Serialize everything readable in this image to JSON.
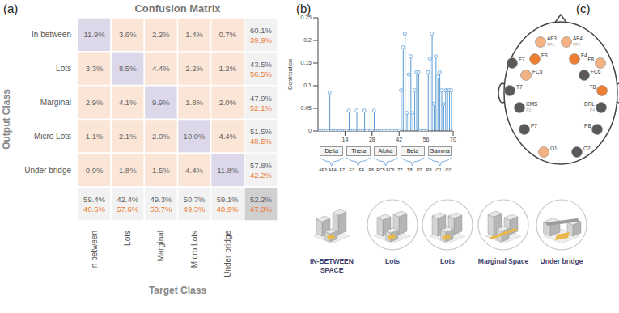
{
  "panel_labels": [
    "(a)",
    "(b)",
    "(c)"
  ],
  "chart_data": [
    {
      "type": "heatmap",
      "title": "Confusion Matrix",
      "x_label": "Target Class",
      "y_label": "Output Class",
      "categories": [
        "In between",
        "Lots",
        "Marginal",
        "Micro Lots",
        "Under bridge"
      ],
      "cells": [
        [
          11.9,
          3.6,
          2.2,
          1.4,
          0.7
        ],
        [
          3.3,
          8.5,
          4.4,
          2.2,
          1.2
        ],
        [
          2.9,
          4.1,
          9.9,
          1.8,
          2.0
        ],
        [
          1.1,
          2.1,
          2.0,
          10.0,
          4.4
        ],
        [
          0.9,
          1.8,
          1.5,
          4.4,
          11.8
        ]
      ],
      "cell_labels": [
        [
          "11.9%",
          "3.6%",
          "2.2%",
          "1.4%",
          "0.7%"
        ],
        [
          "3.3%",
          "8.5%",
          "4.4%",
          "2.2%",
          "1.2%"
        ],
        [
          "2.9%",
          "4.1%",
          "9.9%",
          "1.8%",
          "2.0%"
        ],
        [
          "1.1%",
          "2.1%",
          "2.0%",
          "10.0%",
          "4.4%"
        ],
        [
          "0.9%",
          "1.8%",
          "1.5%",
          "4.4%",
          "11.8%"
        ]
      ],
      "row_summary": [
        [
          60.1,
          39.9
        ],
        [
          43.5,
          56.5
        ],
        [
          47.9,
          52.1
        ],
        [
          51.5,
          48.5
        ],
        [
          57.8,
          42.2
        ]
      ],
      "row_summary_labels": [
        [
          "60.1%",
          "39.9%"
        ],
        [
          "43.5%",
          "56.5%"
        ],
        [
          "47.9%",
          "52.1%"
        ],
        [
          "51.5%",
          "48.5%"
        ],
        [
          "57.8%",
          "42.2%"
        ]
      ],
      "column_summary": [
        [
          59.4,
          40.6
        ],
        [
          42.4,
          57.6
        ],
        [
          49.3,
          50.7
        ],
        [
          50.7,
          49.3
        ],
        [
          59.1,
          40.9
        ]
      ],
      "column_summary_labels": [
        [
          "59.4%",
          "40.6%"
        ],
        [
          "42.4%",
          "57.6%"
        ],
        [
          "49.3%",
          "50.7%"
        ],
        [
          "50.7%",
          "49.3%"
        ],
        [
          "59.1%",
          "40.9%"
        ]
      ],
      "overall": [
        52.2,
        47.8
      ],
      "overall_labels": [
        "52.2%",
        "47.8%"
      ]
    },
    {
      "type": "stem",
      "y_label": "Contribution",
      "color": "#5b9bd5",
      "x": [
        1,
        2,
        3,
        4,
        5,
        6,
        7,
        8,
        9,
        10,
        11,
        12,
        13,
        14,
        15,
        16,
        17,
        18,
        19,
        20,
        21,
        22,
        23,
        24,
        25,
        26,
        27,
        28,
        29,
        30,
        31,
        32,
        33,
        34,
        35,
        36,
        37,
        38,
        39,
        40,
        41,
        42,
        43,
        44,
        45,
        46,
        47,
        48,
        49,
        50,
        51,
        52,
        53,
        54,
        55,
        56,
        57,
        58,
        59,
        60,
        61,
        62,
        63,
        64,
        65,
        66,
        67,
        68,
        69,
        70
      ],
      "values": [
        0,
        0,
        0,
        0,
        0,
        0.085,
        0,
        0,
        0,
        0,
        0,
        0,
        0,
        0,
        0,
        0.045,
        0,
        0,
        0,
        0.045,
        0,
        0,
        0,
        0.045,
        0,
        0,
        0,
        0,
        0.045,
        0,
        0,
        0,
        0,
        0,
        0,
        0,
        0,
        0,
        0,
        0,
        0,
        0,
        0.09,
        0.185,
        0.215,
        0.04,
        0.125,
        0.165,
        0.04,
        0.09,
        0.13,
        0.13,
        0,
        0,
        0,
        0,
        0.13,
        0.16,
        0.215,
        0.06,
        0.165,
        0.12,
        0.13,
        0.09,
        0.06,
        0.09,
        0.09,
        0.09,
        0.09,
        0
      ],
      "xlim": [
        0,
        70
      ],
      "xticks": [
        14,
        28,
        42,
        56,
        70
      ],
      "ylim": [
        0,
        0.25
      ],
      "yticks": [
        0,
        0.05,
        0.1,
        0.15,
        0.2,
        0.25
      ],
      "bands": [
        "Delta",
        "Theta",
        "Alpha",
        "Beta",
        "Gamma"
      ],
      "channels": [
        "AF3",
        "AF4",
        "F7",
        "F3",
        "F4",
        "F8",
        "FC5",
        "FC6",
        "T7",
        "T8",
        "P7",
        "P8",
        "O1",
        "O2"
      ]
    }
  ],
  "electrode_map": {
    "electrodes": [
      {
        "label": "AF3",
        "sublabel": "FP1",
        "color": "#f4b183"
      },
      {
        "label": "AF4",
        "sublabel": "FP2",
        "color": "#f4b183"
      },
      {
        "label": "F7",
        "color": "#595959"
      },
      {
        "label": "F3",
        "color": "#ed7d31"
      },
      {
        "label": "F4",
        "color": "#ed7d31"
      },
      {
        "label": "F8",
        "color": "#f4b183"
      },
      {
        "label": "FC5",
        "color": "#f4b183"
      },
      {
        "label": "FC6",
        "color": "#595959"
      },
      {
        "label": "T7",
        "color": "#595959"
      },
      {
        "label": "T8",
        "color": "#ed7d31"
      },
      {
        "label": "CMS",
        "sublabel": "P3",
        "color": "#595959"
      },
      {
        "label": "DRL",
        "sublabel": "P4",
        "color": "#595959"
      },
      {
        "label": "P7",
        "color": "#595959"
      },
      {
        "label": "P8",
        "color": "#595959"
      },
      {
        "label": "O1",
        "color": "#f4b183"
      },
      {
        "label": "O2",
        "color": "#595959"
      }
    ]
  },
  "space_types": [
    "IN-BETWEEN SPACE",
    "Lots",
    "Lots",
    "Marginal Space",
    "Under bridge"
  ]
}
